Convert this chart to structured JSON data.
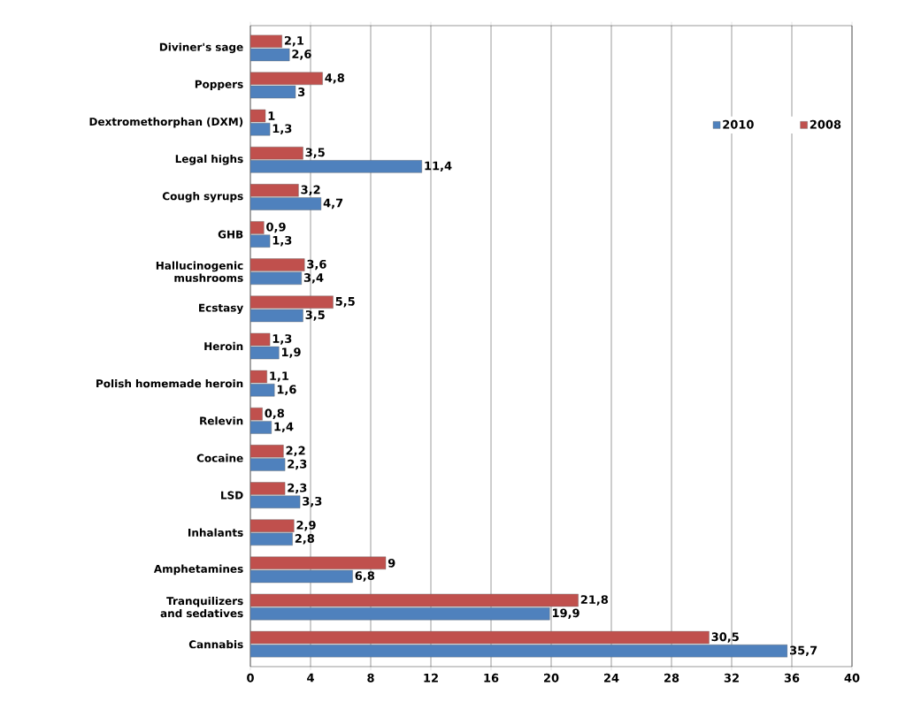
{
  "chart_data": {
    "type": "bar",
    "orientation": "horizontal",
    "categories": [
      "Diviner's sage",
      "Poppers",
      "Dextromethorphan (DXM)",
      "Legal highs",
      "Cough syrups",
      "GHB",
      "Hallucinogenic mushrooms",
      "Ecstasy",
      "Heroin",
      "Polish homemade heroin",
      "Relevin",
      "Cocaine",
      "LSD",
      "Inhalants",
      "Amphetamines",
      "Tranquilizers and sedatives",
      "Cannabis"
    ],
    "series": [
      {
        "name": "2010",
        "color": "#4f81bd",
        "values": [
          2.6,
          3,
          1.3,
          11.4,
          4.7,
          1.3,
          3.4,
          3.5,
          1.9,
          1.6,
          1.4,
          2.3,
          3.3,
          2.8,
          6.8,
          19.9,
          35.7
        ],
        "value_labels": [
          "2,6",
          "3",
          "1,3",
          "11,4",
          "4,7",
          "1,3",
          "3,4",
          "3,5",
          "1,9",
          "1,6",
          "1,4",
          "2,3",
          "3,3",
          "2,8",
          "6,8",
          "19,9",
          "35,7"
        ]
      },
      {
        "name": "2008",
        "color": "#c0504d",
        "values": [
          2.1,
          4.8,
          1,
          3.5,
          3.2,
          0.9,
          3.6,
          5.5,
          1.3,
          1.1,
          0.8,
          2.2,
          2.3,
          2.9,
          9,
          21.8,
          30.5
        ],
        "value_labels": [
          "2,1",
          "4,8",
          "1",
          "3,5",
          "3,2",
          "0,9",
          "3,6",
          "5,5",
          "1,3",
          "1,1",
          "0,8",
          "2,2",
          "2,3",
          "2,9",
          "9",
          "21,8",
          "30,5"
        ]
      }
    ],
    "xlim": [
      0,
      40
    ],
    "xticks": [
      0,
      4,
      8,
      12,
      16,
      20,
      24,
      28,
      32,
      36,
      40
    ],
    "grid": "x",
    "legend": "top right"
  }
}
